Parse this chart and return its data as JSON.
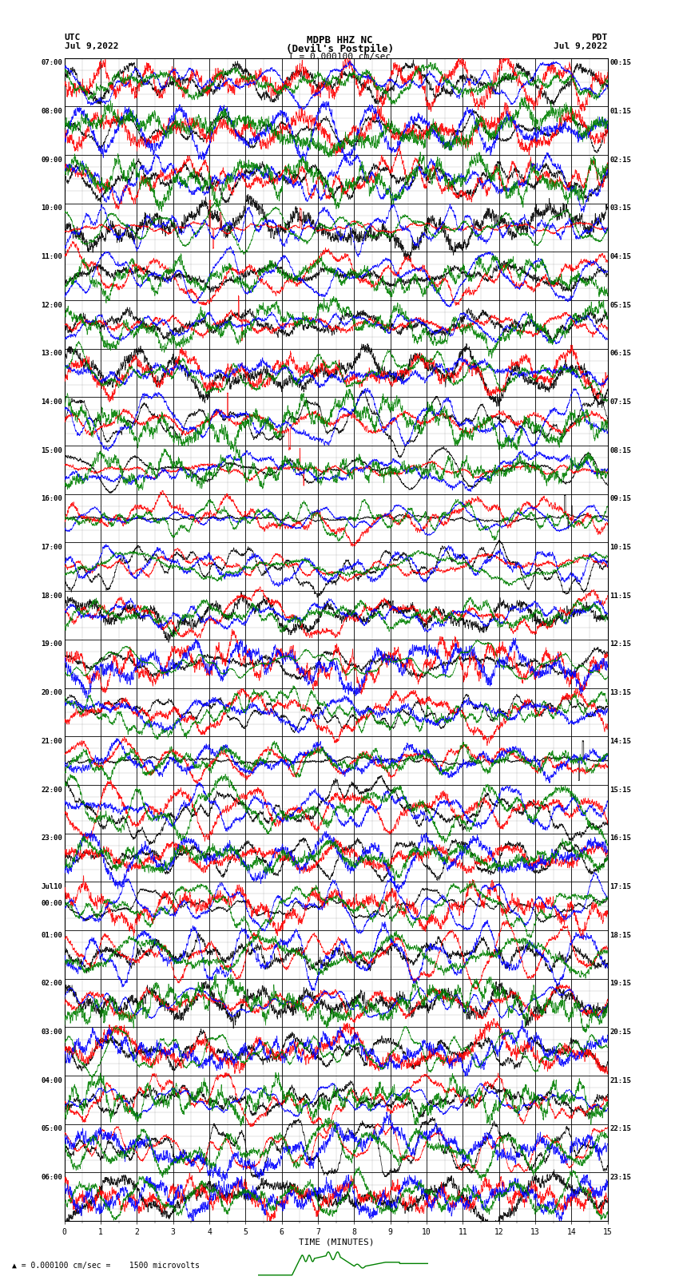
{
  "title_line1": "MDPB HHZ NC",
  "title_line2": "(Devil's Postpile)",
  "scale_text": "I = 0.000100 cm/sec",
  "footer_text": "= 0.000100 cm/sec =    1500 microvolts",
  "utc_label": "UTC",
  "utc_date": "Jul 9,2022",
  "pdt_label": "PDT",
  "pdt_date": "Jul 9,2022",
  "left_times": [
    "07:00",
    "08:00",
    "09:00",
    "10:00",
    "11:00",
    "12:00",
    "13:00",
    "14:00",
    "15:00",
    "16:00",
    "17:00",
    "18:00",
    "19:00",
    "20:00",
    "21:00",
    "22:00",
    "23:00",
    "Jul10\n00:00",
    "01:00",
    "02:00",
    "03:00",
    "04:00",
    "05:00",
    "06:00"
  ],
  "right_times": [
    "00:15",
    "01:15",
    "02:15",
    "03:15",
    "04:15",
    "05:15",
    "06:15",
    "07:15",
    "08:15",
    "09:15",
    "10:15",
    "11:15",
    "12:15",
    "13:15",
    "14:15",
    "15:15",
    "16:15",
    "17:15",
    "18:15",
    "19:15",
    "20:15",
    "21:15",
    "22:15",
    "23:15"
  ],
  "xlabel": "TIME (MINUTES)",
  "xlim": [
    0,
    15
  ],
  "xticks": [
    0,
    1,
    2,
    3,
    4,
    5,
    6,
    7,
    8,
    9,
    10,
    11,
    12,
    13,
    14,
    15
  ],
  "n_rows": 24,
  "bg_color": "#ffffff",
  "grid_major_color": "#000000",
  "grid_minor_color": "#aaaaaa",
  "trace_colors": [
    "black",
    "red",
    "blue",
    "green"
  ],
  "fig_width": 8.5,
  "fig_height": 16.13,
  "dpi": 100
}
